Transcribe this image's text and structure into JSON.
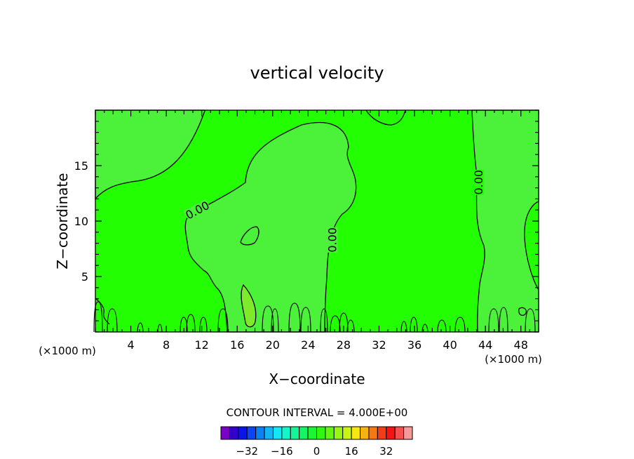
{
  "chart_data": {
    "type": "contour",
    "title": "vertical velocity",
    "xlabel": "X−coordinate",
    "ylabel": "Z−coordinate",
    "x_unit": "(×1000 m)",
    "y_unit": "(×1000 m)",
    "xlim": [
      0,
      50
    ],
    "ylim": [
      0,
      20
    ],
    "x_ticks": [
      4,
      8,
      12,
      16,
      20,
      24,
      28,
      32,
      36,
      40,
      44,
      48
    ],
    "y_ticks": [
      5,
      10,
      15
    ],
    "contour_labels": [
      {
        "text": "0.00",
        "x": 11.5,
        "y": 11
      },
      {
        "text": "0.00",
        "x": 26.7,
        "y": 8.3
      },
      {
        "text": "0.00",
        "x": 43.2,
        "y": 13.5
      }
    ],
    "footer": "CONTOUR INTERVAL = 4.000E+00",
    "colorbar": {
      "tick_labels": [
        "−32",
        "−16",
        "0",
        "16",
        "32"
      ],
      "tick_values": [
        -32,
        -16,
        0,
        16,
        32
      ],
      "colors": [
        "#7a00c8",
        "#3200c8",
        "#0a14e6",
        "#0a46f5",
        "#0a82f5",
        "#14b4f5",
        "#14e6f5",
        "#14f5c8",
        "#14f59a",
        "#14f564",
        "#1ef532",
        "#32f514",
        "#64f514",
        "#9af514",
        "#c8f514",
        "#f5e614",
        "#f5b414",
        "#f57814",
        "#f53c14",
        "#f51414",
        "#f55050",
        "#f59a9a"
      ]
    },
    "field_colors": {
      "background": "#23ff02",
      "upward_region": "#4cf23a",
      "strong_upward_core": "#7fea2c"
    }
  }
}
